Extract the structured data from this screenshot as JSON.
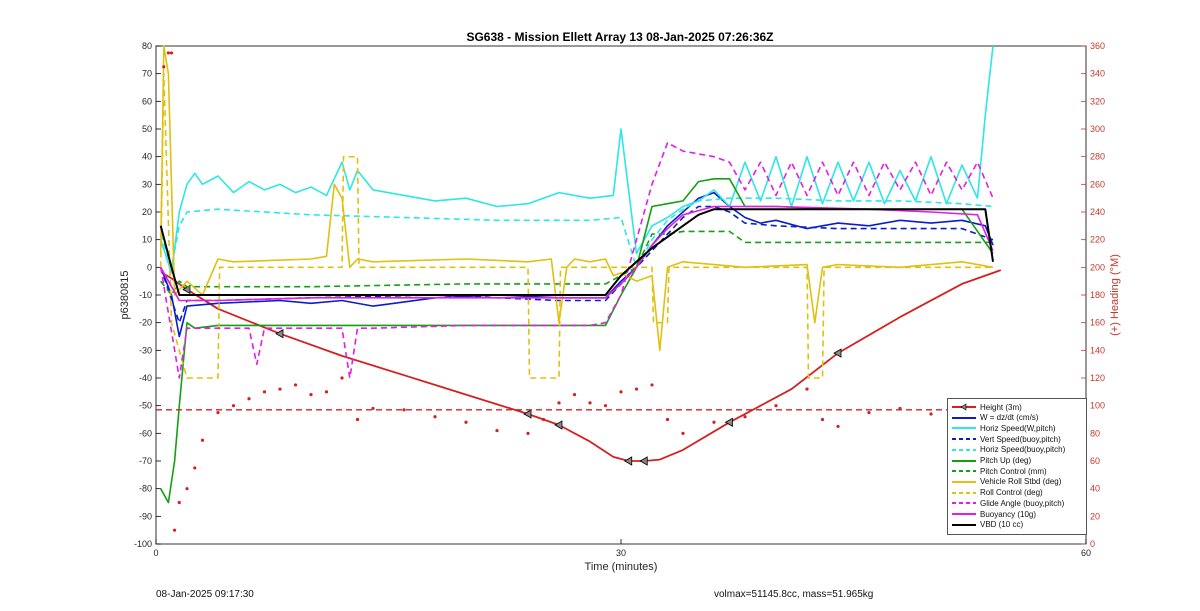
{
  "chart_data": {
    "type": "line",
    "title": "SG638 - Mission Ellett Array 13 08-Jan-2025 07:26:36Z",
    "xlabel": "Time (minutes)",
    "ylabel_left": "p6380815",
    "ylabel_right": "(+) Heading (°M)",
    "xlim": [
      0,
      60
    ],
    "ylim_left": [
      -100,
      80
    ],
    "ylim_right": [
      0,
      360
    ],
    "x_ticks": [
      0,
      30,
      60
    ],
    "y_ticks_left": [
      -100,
      -90,
      -80,
      -70,
      -60,
      -50,
      -40,
      -30,
      -20,
      -10,
      0,
      10,
      20,
      30,
      40,
      50,
      60,
      70,
      80
    ],
    "y_ticks_right": [
      0,
      20,
      40,
      60,
      80,
      100,
      120,
      140,
      160,
      180,
      200,
      220,
      240,
      260,
      280,
      300,
      320,
      340,
      360
    ],
    "grid": false,
    "legend_position": "bottom-right",
    "series": [
      {
        "name": "Height (3m)",
        "color": "#d62020",
        "style": "solid",
        "width": 1.8,
        "marker": "triangle",
        "axis": "left",
        "x": [
          0.4,
          1.0,
          2.0,
          4.0,
          8.0,
          12.0,
          16.0,
          20.0,
          24.0,
          26.0,
          28.0,
          29.5,
          30.5,
          31.5,
          32.5,
          34.0,
          37.0,
          41.0,
          44.0,
          48.0,
          52.0,
          54.5
        ],
        "y": [
          -2,
          -4,
          -8,
          -15,
          -24,
          -32,
          -39,
          -46,
          -53,
          -57,
          -63,
          -68.5,
          -70,
          -70,
          -69.5,
          -66,
          -56,
          -44,
          -31,
          -18,
          -6,
          -1
        ]
      },
      {
        "name": "W = dz/dt (cm/s)",
        "color": "#0a1ec8",
        "style": "solid",
        "width": 1.6,
        "axis": "left",
        "x": [
          0.3,
          1.0,
          1.5,
          2.0,
          4,
          8,
          10,
          12,
          14,
          18,
          22,
          26,
          29,
          30,
          31,
          32,
          33,
          34,
          35,
          36,
          37,
          38,
          39,
          40,
          42,
          44,
          46,
          48,
          50,
          52,
          53.5,
          54
        ],
        "y": [
          0,
          -10,
          -25,
          -14,
          -13,
          -12,
          -13,
          -12,
          -14,
          -11,
          -10,
          -11,
          -11,
          -5,
          0,
          8,
          15,
          20,
          25,
          27,
          22,
          18,
          16,
          17,
          14,
          16,
          15,
          17,
          16,
          17,
          15,
          8
        ]
      },
      {
        "name": "Horiz Speed(W,pitch)",
        "color": "#2de6e6",
        "style": "solid",
        "width": 1.6,
        "axis": "left",
        "x": [
          0.3,
          1.0,
          1.5,
          2.0,
          2.5,
          3.0,
          4.0,
          5.0,
          6.0,
          7.0,
          8.0,
          9.0,
          10.0,
          11.0,
          12.0,
          12.5,
          13.0,
          14.0,
          16,
          18,
          20,
          22,
          24,
          26,
          28,
          29.5,
          30,
          31,
          32,
          33,
          34,
          35,
          36,
          37,
          38,
          39,
          40,
          41,
          42,
          43,
          44,
          45,
          46,
          47,
          48,
          49,
          50,
          51,
          52,
          53,
          53.5,
          54
        ],
        "y": [
          10,
          -2,
          20,
          30,
          34,
          30,
          33,
          27,
          31,
          28,
          30,
          27,
          29,
          26,
          38,
          28,
          35,
          28,
          26,
          24,
          25,
          22,
          23,
          27,
          25,
          26,
          50,
          5,
          15,
          18,
          22,
          24,
          28,
          22,
          38,
          24,
          40,
          22,
          40,
          23,
          38,
          24,
          38,
          23,
          35,
          24,
          40,
          23,
          37,
          25,
          55,
          80
        ]
      },
      {
        "name": "Vert Speed(buoy,pitch)",
        "color": "#0a1ec8",
        "style": "dashed",
        "width": 1.6,
        "axis": "left",
        "x": [
          0.3,
          1.5,
          2.0,
          4,
          10,
          18,
          26,
          29,
          30,
          31,
          32,
          33,
          34,
          35,
          36,
          37,
          38,
          40,
          44,
          48,
          52,
          54
        ],
        "y": [
          0,
          -20,
          -12,
          -12,
          -11,
          -10,
          -12,
          -12,
          -6,
          0,
          6,
          12,
          18,
          22,
          22,
          20,
          16,
          15,
          14,
          14,
          14,
          10
        ]
      },
      {
        "name": "Horiz Speed(buoy,pitch)",
        "color": "#2de6e6",
        "style": "dashed",
        "width": 1.6,
        "axis": "left",
        "x": [
          0.3,
          1.0,
          1.5,
          2.0,
          4,
          10,
          16,
          22,
          28,
          30,
          31,
          32,
          33,
          34,
          35,
          37,
          40,
          44,
          48,
          52,
          54
        ],
        "y": [
          12,
          0,
          15,
          20,
          21,
          19,
          18,
          17,
          17,
          18,
          0,
          10,
          17,
          21,
          24,
          25,
          25,
          24,
          24,
          23,
          22
        ]
      },
      {
        "name": "Pitch Up (deg)",
        "color": "#14a014",
        "style": "solid",
        "width": 1.6,
        "axis": "left",
        "x": [
          0.3,
          0.8,
          1.2,
          1.5,
          2.0,
          2.5,
          4,
          10,
          18,
          26,
          29,
          30,
          31,
          32,
          33,
          34,
          35,
          36,
          37,
          38,
          40,
          44,
          48,
          52,
          54
        ],
        "y": [
          -80,
          -85,
          -70,
          -50,
          -20,
          -22,
          -21,
          -21,
          -21,
          -21,
          -21,
          -10,
          0,
          22,
          23,
          24,
          31,
          32,
          32,
          22,
          22,
          21,
          21,
          21,
          5
        ]
      },
      {
        "name": "Pitch Control (mm)",
        "color": "#14a014",
        "style": "dashed",
        "width": 1.6,
        "axis": "left",
        "x": [
          0.3,
          1.0,
          1.5,
          2.0,
          4,
          10,
          20,
          29,
          30,
          31,
          32,
          33,
          34,
          36,
          37,
          38,
          44,
          50,
          54
        ],
        "y": [
          -5,
          -10,
          -5,
          -7,
          -7,
          -7,
          -6,
          -6,
          -3,
          0,
          12,
          12,
          13,
          13,
          13,
          9,
          9,
          9,
          9
        ]
      },
      {
        "name": "Vehicle Roll Stbd (deg)",
        "color": "#e0c010",
        "style": "solid",
        "width": 1.6,
        "axis": "left",
        "x": [
          0.3,
          0.5,
          0.8,
          1.2,
          2.0,
          3.0,
          4.0,
          5.0,
          10,
          11,
          11.5,
          12,
          12.5,
          13,
          14,
          20,
          24,
          25.5,
          26,
          26.5,
          27,
          28,
          29,
          29.5,
          30,
          31,
          32,
          32.5,
          33,
          34,
          38,
          42,
          42.5,
          43,
          44,
          48,
          52,
          54
        ],
        "y": [
          5,
          80,
          70,
          -10,
          -5,
          -10,
          3,
          2,
          3,
          4,
          30,
          25,
          0,
          3,
          2,
          3,
          2,
          3,
          -20,
          0,
          3,
          2,
          3,
          -3,
          -2,
          -5,
          -3,
          -30,
          0,
          2,
          0,
          1,
          -20,
          0,
          1,
          0,
          2,
          0
        ]
      },
      {
        "name": "Roll Control (deg)",
        "color": "#e0c010",
        "style": "dashed",
        "width": 1.6,
        "axis": "left",
        "x": [
          0.3,
          0.5,
          1.0,
          2.0,
          4.0,
          4.1,
          12.0,
          12.1,
          13.0,
          13.1,
          24,
          24.1,
          26,
          26.1,
          32,
          32.1,
          33,
          33.1,
          42,
          42.1,
          43,
          43.1,
          54
        ],
        "y": [
          0,
          70,
          -20,
          -40,
          -40,
          0,
          0,
          40,
          40,
          0,
          0,
          -40,
          -40,
          0,
          0,
          -20,
          -20,
          0,
          0,
          -40,
          -40,
          0,
          0
        ]
      },
      {
        "name": "Glide Angle (buoy,pitch)",
        "color": "#e020e0",
        "style": "dashed",
        "width": 1.6,
        "axis": "left",
        "x": [
          0.3,
          1.5,
          2.0,
          4,
          6,
          6.5,
          7,
          8,
          10,
          12,
          12.5,
          13,
          14,
          20,
          28,
          29,
          30,
          31,
          32,
          33,
          34,
          36,
          37,
          38,
          39,
          40,
          41,
          42,
          43,
          44,
          45,
          46,
          47,
          48,
          49,
          50,
          51,
          52,
          53,
          54
        ],
        "y": [
          0,
          -40,
          -22,
          -22,
          -22,
          -35,
          -22,
          -22,
          -22,
          -22,
          -40,
          -22,
          -22,
          -21,
          -21,
          -20,
          -10,
          10,
          30,
          45,
          42,
          40,
          38,
          28,
          38,
          26,
          38,
          26,
          38,
          26,
          38,
          26,
          38,
          28,
          38,
          26,
          38,
          28,
          38,
          25
        ]
      },
      {
        "name": "Buoyancy (10g)",
        "color": "#e020e0",
        "style": "solid",
        "width": 1.6,
        "axis": "left",
        "x": [
          0.3,
          1.5,
          2.0,
          4,
          10,
          18,
          26,
          29,
          30,
          31,
          32,
          33,
          34,
          36,
          40,
          46,
          50,
          53,
          54
        ],
        "y": [
          0,
          -12,
          -12,
          -12,
          -11,
          -11,
          -11,
          -11,
          -6,
          0,
          8,
          14,
          19,
          22,
          22,
          21,
          20,
          19,
          6
        ]
      },
      {
        "name": "VBD (10 cc)",
        "color": "#000000",
        "style": "solid",
        "width": 2.0,
        "axis": "left",
        "x": [
          0.3,
          1.0,
          1.5,
          2.0,
          29,
          30,
          31,
          32,
          33,
          34,
          35,
          36,
          53.5,
          54
        ],
        "y": [
          15,
          0,
          -10,
          -10,
          -10,
          -3,
          2,
          7,
          11,
          15,
          19,
          21,
          21,
          2
        ]
      },
      {
        "name": "",
        "color": "#d62020",
        "style": "dashed",
        "width": 1.4,
        "axis": "right",
        "x": [
          0,
          60
        ],
        "y": [
          97,
          97
        ]
      },
      {
        "name": "",
        "color": "#d62020",
        "style": "dots",
        "width": 1.0,
        "axis": "right",
        "x": [
          0.5,
          0.8,
          1.0,
          1.2,
          1.5,
          2.0,
          2.5,
          3.0,
          4.0,
          5.0,
          6.0,
          7.0,
          8.0,
          9.0,
          10.0,
          11.0,
          12.0,
          13.0,
          14.0,
          16.0,
          18.0,
          20.0,
          22.0,
          24.0,
          25.0,
          26.0,
          27.0,
          28.0,
          29.0,
          30.0,
          31.0,
          32.0,
          33.0,
          34.0,
          36.0,
          38.0,
          40.0,
          42.0,
          43.0,
          44.0,
          46.0,
          48.0,
          50.0,
          52.0,
          54.0
        ],
        "y": [
          345,
          355,
          355,
          10,
          30,
          40,
          55,
          75,
          95,
          100,
          105,
          110,
          112,
          115,
          108,
          110,
          120,
          90,
          98,
          97,
          92,
          88,
          82,
          80,
          90,
          102,
          108,
          102,
          100,
          110,
          112,
          115,
          90,
          80,
          88,
          92,
          100,
          112,
          90,
          85,
          95,
          98,
          94,
          92,
          90
        ]
      }
    ]
  },
  "footer": {
    "left": "08-Jan-2025 09:17:30",
    "right": "volmax=51145.8cc, mass=51.965kg"
  }
}
